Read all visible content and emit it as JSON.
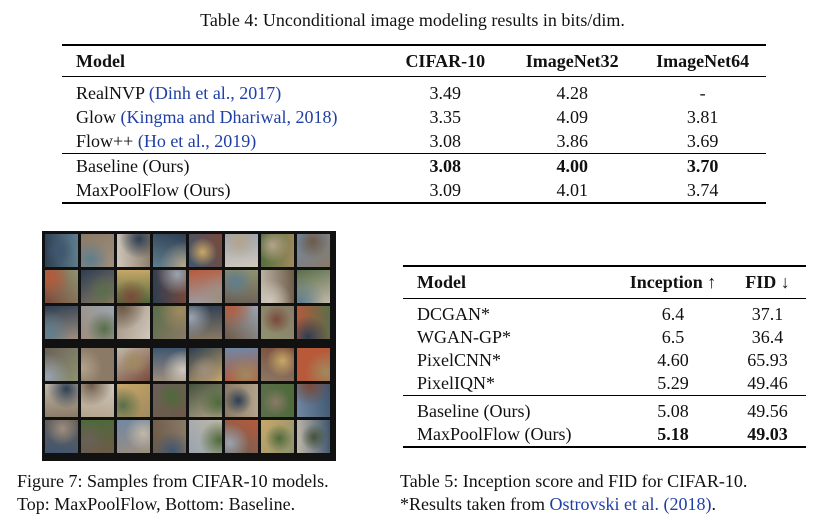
{
  "table4": {
    "caption": "Table 4: Unconditional image modeling results in bits/dim.",
    "headers": [
      "Model",
      "CIFAR-10",
      "ImageNet32",
      "ImageNet64"
    ],
    "rows": [
      {
        "name": "RealNVP ",
        "cite": "(Dinh et al., 2017)",
        "values": [
          "3.49",
          "4.28",
          "-"
        ],
        "bold": false
      },
      {
        "name": "Glow ",
        "cite": "(Kingma and Dhariwal, 2018)",
        "values": [
          "3.35",
          "4.09",
          "3.81"
        ],
        "bold": false
      },
      {
        "name": "Flow++ ",
        "cite": "(Ho et al., 2019)",
        "values": [
          "3.08",
          "3.86",
          "3.69"
        ],
        "bold": false
      },
      {
        "name": "Baseline (Ours)",
        "cite": "",
        "values": [
          "3.08",
          "4.00",
          "3.70"
        ],
        "bold": true
      },
      {
        "name": "MaxPoolFlow (Ours)",
        "cite": "",
        "values": [
          "3.09",
          "4.01",
          "3.74"
        ],
        "bold": false
      }
    ]
  },
  "figure7": {
    "caption_line1": "Figure 7: Samples from CIFAR-10 models.",
    "caption_line2": "Top: MaxPoolFlow, Bottom: Baseline.",
    "palette": [
      "#5a6e4a",
      "#8a7a66",
      "#3f5670",
      "#b4a48c",
      "#6d5a48",
      "#9aa4b0",
      "#4e6a3a",
      "#c0b8a8",
      "#7a4a3a",
      "#2e3e52",
      "#a08a5e",
      "#5e7e8e",
      "#8e9270",
      "#d0c8bc",
      "#6a6058",
      "#b85a3a",
      "#44523c",
      "#9e8e7e",
      "#7088a4",
      "#c8a868"
    ]
  },
  "table5": {
    "headers": [
      "Model",
      "Inception ↑",
      "FID ↓"
    ],
    "rows": [
      {
        "name": "DCGAN*",
        "values": [
          "6.4",
          "37.1"
        ],
        "bold": false
      },
      {
        "name": "WGAN-GP*",
        "values": [
          "6.5",
          "36.4"
        ],
        "bold": false
      },
      {
        "name": "PixelCNN*",
        "values": [
          "4.60",
          "65.93"
        ],
        "bold": false
      },
      {
        "name": "PixelIQN*",
        "values": [
          "5.29",
          "49.46"
        ],
        "bold": false
      },
      {
        "name": "Baseline (Ours)",
        "values": [
          "5.08",
          "49.56"
        ],
        "bold": false
      },
      {
        "name": "MaxPoolFlow (Ours)",
        "values": [
          "5.18",
          "49.03"
        ],
        "bold": true
      }
    ],
    "caption_line1": "Table 5: Inception score and FID for CIFAR-10.",
    "caption_line2_prefix": "*Results taken from ",
    "caption_line2_cite": "Ostrovski et al. (2018)",
    "caption_line2_suffix": "."
  }
}
